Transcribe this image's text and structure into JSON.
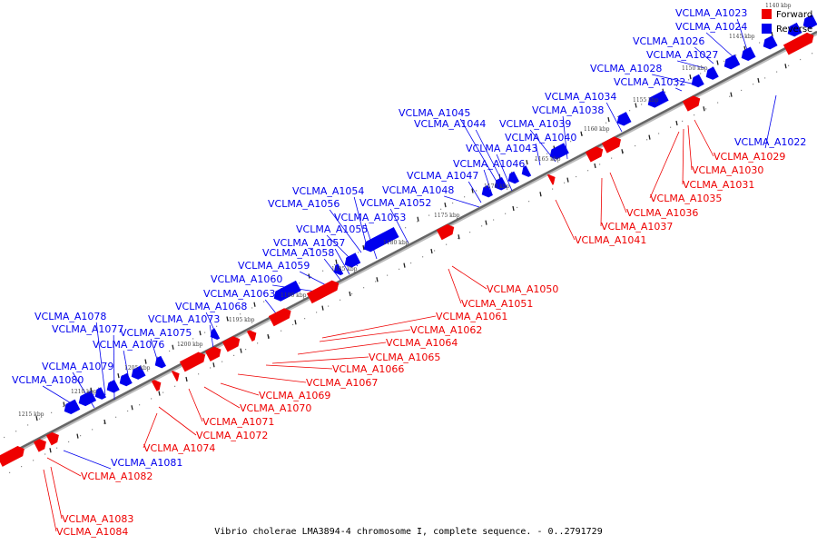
{
  "caption": "Vibrio cholerae LMA3894-4 chromosome I, complete sequence. - 0..2791729",
  "legend": {
    "title_tick": "1140 kbp",
    "forward": {
      "label": "Forward",
      "color": "#ee0000"
    },
    "reverse": {
      "label": "Reverse",
      "color": "#0000ee"
    }
  },
  "colors": {
    "forward": "#ee0000",
    "reverse": "#0000ee",
    "axis": "#666666"
  },
  "ticks": [
    "1145 kbp",
    "1150 kbp",
    "1155 kbp",
    "1160 kbp",
    "1165 kbp",
    "1170 kbp",
    "1175 kbp",
    "1180 kbp",
    "1185 kbp",
    "1190 kbp",
    "1195 kbp",
    "1200 kbp",
    "1205 kbp",
    "1210 kbp",
    "1215 kbp"
  ],
  "reverse_labels": [
    "VCLMA_A1023",
    "VCLMA_A1024",
    "VCLMA_A1026",
    "VCLMA_A1027",
    "VCLMA_A1028",
    "VCLMA_A1032",
    "VCLMA_A1034",
    "VCLMA_A1038",
    "VCLMA_A1039",
    "VCLMA_A1040",
    "VCLMA_A1045",
    "VCLMA_A1044",
    "VCLMA_A1043",
    "VCLMA_A1046",
    "VCLMA_A1047",
    "VCLMA_A1048",
    "VCLMA_A1054",
    "VCLMA_A1056",
    "VCLMA_A1052",
    "VCLMA_A1053",
    "VCLMA_A1055",
    "VCLMA_A1057",
    "VCLMA_A1058",
    "VCLMA_A1059",
    "VCLMA_A1060",
    "VCLMA_A1063",
    "VCLMA_A1068",
    "VCLMA_A1073",
    "VCLMA_A1078",
    "VCLMA_A1077",
    "VCLMA_A1075",
    "VCLMA_A1076",
    "VCLMA_A1079",
    "VCLMA_A1080",
    "VCLMA_A1022",
    "VCLMA_A1081"
  ],
  "forward_labels": [
    "VCLMA_A1029",
    "VCLMA_A1030",
    "VCLMA_A1031",
    "VCLMA_A1035",
    "VCLMA_A1036",
    "VCLMA_A1037",
    "VCLMA_A1041",
    "VCLMA_A1050",
    "VCLMA_A1051",
    "VCLMA_A1061",
    "VCLMA_A1062",
    "VCLMA_A1064",
    "VCLMA_A1065",
    "VCLMA_A1066",
    "VCLMA_A1067",
    "VCLMA_A1069",
    "VCLMA_A1070",
    "VCLMA_A1071",
    "VCLMA_A1072",
    "VCLMA_A1074",
    "VCLMA_A1082",
    "VCLMA_A1083",
    "VCLMA_A1084"
  ]
}
